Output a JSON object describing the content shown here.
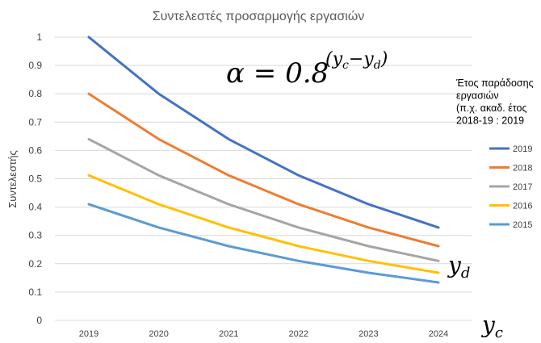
{
  "chart_data": {
    "type": "line",
    "title": "Συντελεστές προσαρμογής εργασιών",
    "xlabel": "",
    "ylabel": "Συντελεστής",
    "categories": [
      "2019",
      "2020",
      "2021",
      "2022",
      "2023",
      "2024"
    ],
    "y_ticks": [
      "0",
      "0.1",
      "0.2",
      "0.3",
      "0.4",
      "0.5",
      "0.6",
      "0.7",
      "0.8",
      "0.9",
      "1"
    ],
    "ylim": [
      0,
      1
    ],
    "grid": "horizontal",
    "legend_position": "right",
    "legend_title": [
      "Έτος παράδοσης",
      "εργασιών",
      "(π.χ. ακαδ. έτος",
      "2018-19 : 2019"
    ],
    "series": [
      {
        "name": "2019",
        "color": "#4472C4",
        "values": [
          1,
          0.8,
          0.64,
          0.512,
          0.41,
          0.328
        ]
      },
      {
        "name": "2018",
        "color": "#ED7D31",
        "values": [
          0.8,
          0.64,
          0.512,
          0.41,
          0.328,
          0.262
        ]
      },
      {
        "name": "2017",
        "color": "#A5A5A5",
        "values": [
          0.64,
          0.512,
          0.41,
          0.328,
          0.262,
          0.21
        ]
      },
      {
        "name": "2016",
        "color": "#FFC000",
        "values": [
          0.512,
          0.41,
          0.328,
          0.262,
          0.21,
          0.168
        ]
      },
      {
        "name": "2015",
        "color": "#5B9BD5",
        "values": [
          0.41,
          0.328,
          0.262,
          0.21,
          0.168,
          0.134
        ]
      }
    ],
    "annotations": {
      "formula_base": "α = 0.8",
      "formula_exponent": "(y",
      "formula_c": "c",
      "formula_minus": "−y",
      "formula_d": "d",
      "formula_close": ")",
      "yd_label": "y",
      "yd_sub": "d",
      "yc_label": "y",
      "yc_sub": "c"
    }
  }
}
